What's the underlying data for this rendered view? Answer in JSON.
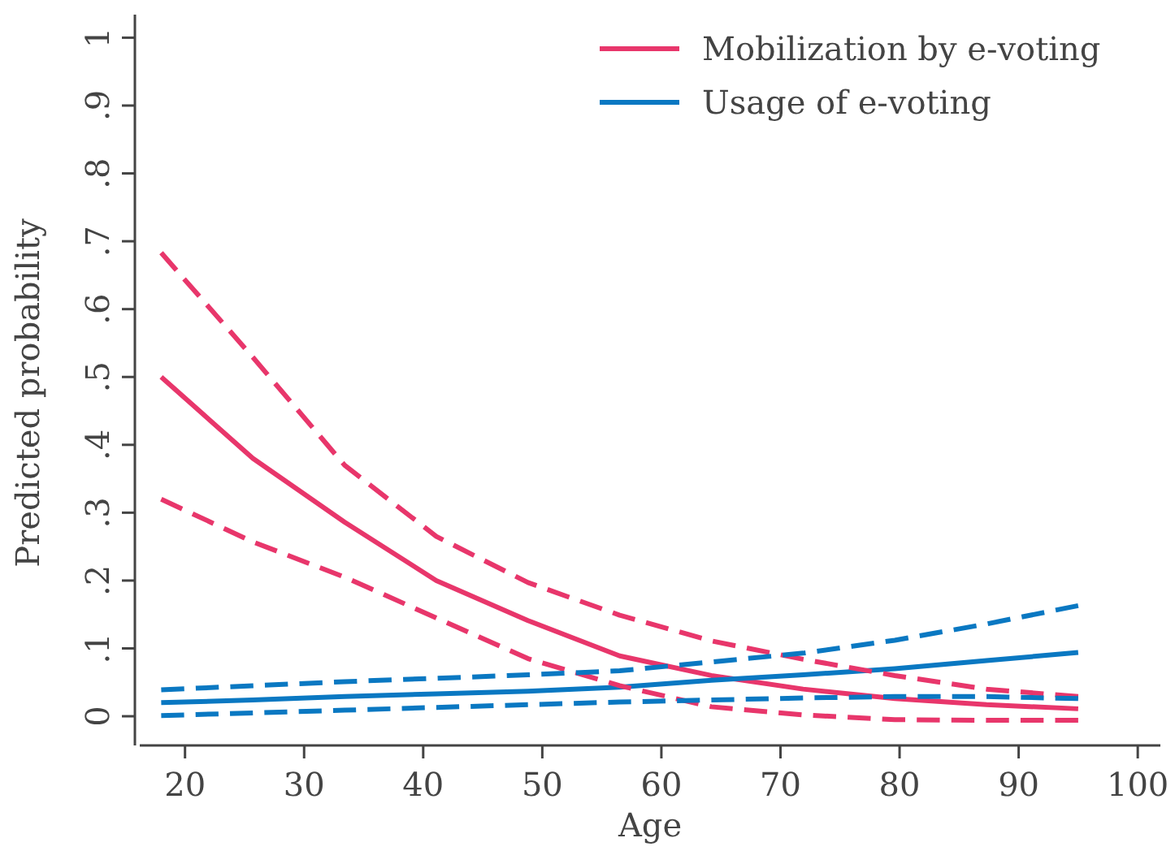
{
  "chart_data": {
    "type": "line",
    "xlabel": "Age",
    "ylabel": "Predicted probability",
    "x": [
      18,
      25.7,
      33.4,
      41.1,
      48.8,
      56.5,
      64.2,
      71.9,
      79.6,
      87.3,
      95
    ],
    "series": [
      {
        "name": "Mobilization by e-voting",
        "color": "#e8366b",
        "line_style": "solid",
        "values": [
          0.5,
          0.38,
          0.286,
          0.2,
          0.141,
          0.089,
          0.06,
          0.04,
          0.026,
          0.017,
          0.011
        ]
      },
      {
        "name": "Usage of e-voting",
        "color": "#0a78c2",
        "line_style": "solid",
        "values": [
          0.02,
          0.024,
          0.029,
          0.033,
          0.037,
          0.043,
          0.053,
          0.061,
          0.07,
          0.082,
          0.094
        ]
      },
      {
        "color": "#e8366b",
        "line_style": "dashed",
        "values": [
          0.683,
          0.529,
          0.37,
          0.265,
          0.197,
          0.149,
          0.111,
          0.084,
          0.06,
          0.04,
          0.029
        ]
      },
      {
        "color": "#e8366b",
        "line_style": "dashed",
        "values": [
          0.32,
          0.257,
          0.205,
          0.145,
          0.085,
          0.045,
          0.014,
          0.002,
          -0.005,
          -0.006,
          -0.006
        ]
      },
      {
        "color": "#0a78c2",
        "line_style": "dashed",
        "values": [
          0.039,
          0.045,
          0.051,
          0.056,
          0.061,
          0.067,
          0.08,
          0.093,
          0.112,
          0.136,
          0.163
        ]
      },
      {
        "color": "#0a78c2",
        "line_style": "dashed",
        "values": [
          0.001,
          0.005,
          0.009,
          0.013,
          0.017,
          0.021,
          0.024,
          0.027,
          0.029,
          0.029,
          0.026
        ]
      }
    ],
    "xlim": [
      16.2,
      101.9
    ],
    "xticks": [
      20,
      30,
      40,
      50,
      60,
      70,
      80,
      90,
      100
    ],
    "ylim": [
      -0.043,
      1.034
    ],
    "yticks": [
      0,
      {
        "value": 0.1,
        "label": ".1"
      },
      {
        "value": 0.2,
        "label": ".2"
      },
      {
        "value": 0.3,
        "label": ".3"
      },
      {
        "value": 0.4,
        "label": ".4"
      },
      {
        "value": 0.5,
        "label": ".5"
      },
      {
        "value": 0.6,
        "label": ".6"
      },
      {
        "value": 0.7,
        "label": ".7"
      },
      {
        "value": 0.8,
        "label": ".8"
      },
      {
        "value": 0.9,
        "label": ".9"
      },
      1
    ],
    "legend": "top right"
  }
}
